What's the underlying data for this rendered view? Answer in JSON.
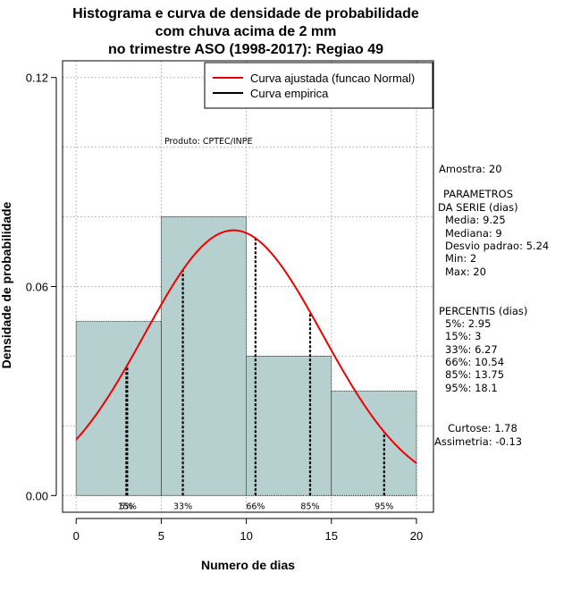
{
  "chart_data": {
    "type": "histogram",
    "title_lines": [
      "Histograma e curva de densidade de probabilidade",
      "com chuva acima de 2 mm",
      "no trimestre ASO (1998-2017): Regiao 49"
    ],
    "xlabel": "Numero de dias",
    "ylabel": "Densidade de probabilidade",
    "xlim": [
      -0.8,
      21
    ],
    "ylim": [
      -0.0048,
      0.1248
    ],
    "xticks": [
      0,
      5,
      10,
      15,
      20
    ],
    "yticks": [
      0.0,
      0.06,
      0.12
    ],
    "ytick_labels": [
      "0.00",
      "0.06",
      "0.12"
    ],
    "grid": true,
    "bins": [
      {
        "from": 0,
        "to": 5,
        "density": 0.05
      },
      {
        "from": 5,
        "to": 10,
        "density": 0.08
      },
      {
        "from": 10,
        "to": 15,
        "density": 0.04
      },
      {
        "from": 15,
        "to": 20,
        "density": 0.03
      }
    ],
    "normal_fit": {
      "mean": 9.25,
      "sd": 5.24,
      "x_from": 0,
      "x_to": 20
    },
    "percentile_lines": [
      {
        "label": "5%",
        "x": 2.95
      },
      {
        "label": "15%",
        "x": 3
      },
      {
        "label": "33%",
        "x": 6.27
      },
      {
        "label": "66%",
        "x": 10.54
      },
      {
        "label": "85%",
        "x": 13.75
      },
      {
        "label": "95%",
        "x": 18.1
      }
    ],
    "legend": [
      {
        "label": "Curva ajustada (funcao Normal)",
        "color": "#ee0000"
      },
      {
        "label": "Curva empirica",
        "color": "#000000"
      }
    ],
    "legend_position": "top-right",
    "annotation": "Produto: CPTEC/INPE",
    "colors": {
      "bars": "#b6cfcf",
      "curve": "#ee0000",
      "grid": "#bbbbbb"
    }
  },
  "stats_panel": {
    "sample": "Amostra: 20",
    "params_title_1": "PARAMETROS",
    "params_title_2": "DA SERIE (dias)",
    "media": "Media: 9.25",
    "mediana": "Mediana: 9",
    "desvio": "Desvio padrao: 5.24",
    "min": "Min: 2",
    "max": "Max: 20",
    "percentis_title": "PERCENTIS (dias)",
    "p5": "5%: 2.95",
    "p15": "15%: 3",
    "p33": "33%: 6.27",
    "p66": "66%: 10.54",
    "p85": "85%: 13.75",
    "p95": "95%: 18.1",
    "curtose": "Curtose: 1.78",
    "assimetria": "Assimetria: -0.13"
  }
}
